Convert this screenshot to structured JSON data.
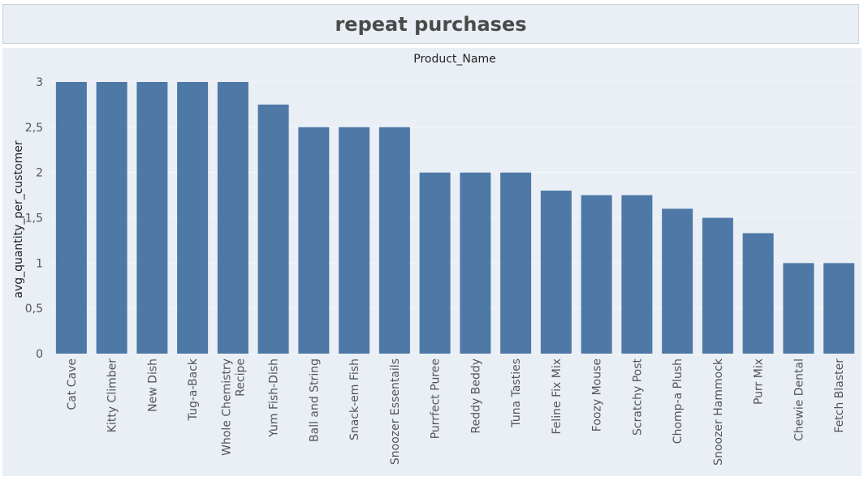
{
  "page": {
    "title": "repeat purchases"
  },
  "chart_data": {
    "type": "bar",
    "title": "repeat purchases",
    "xlabel": "Product_Name",
    "ylabel": "avg_quantity_per_customer",
    "ylim": [
      0,
      3
    ],
    "yticks": [
      0,
      0.5,
      1,
      1.5,
      2,
      2.5,
      3
    ],
    "ytick_labels": [
      "0",
      "0,5",
      "1",
      "1,5",
      "2",
      "2,5",
      "3"
    ],
    "categories": [
      "Cat Cave",
      "Kitty Climber",
      "New Dish",
      "Tug-a-Back",
      "Whole Chemistry Recipe",
      "Yum Fish-Dish",
      "Ball and String",
      "Snack-em Fish",
      "Snoozer Essentails",
      "Purrfect Puree",
      "Reddy Beddy",
      "Tuna Tasties",
      "Feline Fix Mix",
      "Foozy Mouse",
      "Scratchy Post",
      "Chomp-a Plush",
      "Snoozer Hammock",
      "Purr Mix",
      "Chewie Dental",
      "Fetch Blaster"
    ],
    "category_lines": [
      [
        "Cat Cave"
      ],
      [
        "Kitty Climber"
      ],
      [
        "New Dish"
      ],
      [
        "Tug-a-Back"
      ],
      [
        "Whole Chemistry",
        "Recipe"
      ],
      [
        "Yum Fish-Dish"
      ],
      [
        "Ball and String"
      ],
      [
        "Snack-em Fish"
      ],
      [
        "Snoozer Essentails"
      ],
      [
        "Purrfect Puree"
      ],
      [
        "Reddy Beddy"
      ],
      [
        "Tuna Tasties"
      ],
      [
        "Feline Fix Mix"
      ],
      [
        "Foozy Mouse"
      ],
      [
        "Scratchy Post"
      ],
      [
        "Chomp-a Plush"
      ],
      [
        "Snoozer Hammock"
      ],
      [
        "Purr Mix"
      ],
      [
        "Chewie Dental"
      ],
      [
        "Fetch Blaster"
      ]
    ],
    "values": [
      3,
      3,
      3,
      3,
      3,
      2.75,
      2.5,
      2.5,
      2.5,
      2,
      2,
      2,
      1.8,
      1.75,
      1.75,
      1.6,
      1.5,
      1.33,
      1,
      1
    ],
    "bar_color": "#4e79a7",
    "grid": true,
    "legend": "none"
  }
}
